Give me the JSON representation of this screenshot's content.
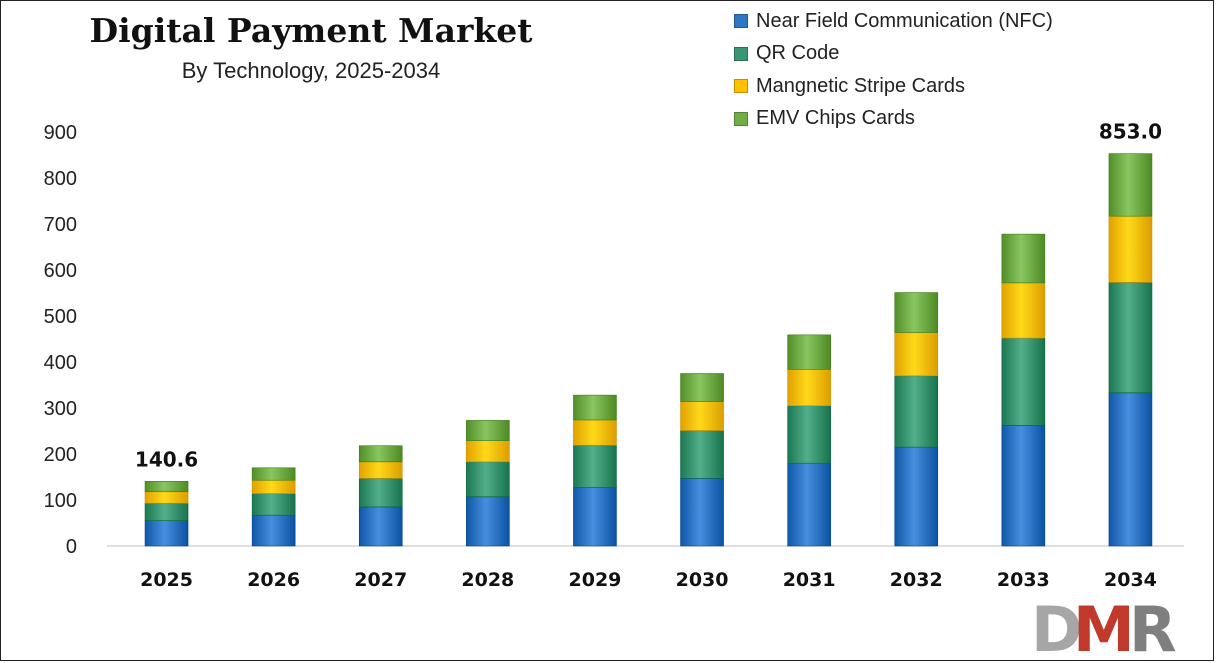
{
  "chart_data": {
    "type": "bar",
    "stacked": true,
    "title": "Digital Payment Market",
    "subtitle": "By Technology, 2025-2034",
    "categories": [
      "2025",
      "2026",
      "2027",
      "2028",
      "2029",
      "2030",
      "2031",
      "2032",
      "2033",
      "2034"
    ],
    "series": [
      {
        "name": "Near Field Communication (NFC)",
        "color": "#2e75c6",
        "values": [
          55,
          67,
          85,
          107,
          127,
          147,
          180,
          215,
          262,
          333
        ]
      },
      {
        "name": "QR Code",
        "color": "#3a9670",
        "values": [
          38,
          47,
          62,
          76,
          92,
          104,
          125,
          155,
          190,
          240
        ]
      },
      {
        "name": "Mangnetic Stripe Cards",
        "color": "#ffc000",
        "values": [
          25,
          29,
          36,
          46,
          55,
          63,
          79,
          94,
          120,
          144
        ]
      },
      {
        "name": "EMV Chips Cards",
        "color": "#70ad47",
        "values": [
          22.6,
          27,
          35,
          44,
          54,
          61,
          75,
          87,
          106,
          136
        ]
      }
    ],
    "totals_labels": [
      {
        "category": "2025",
        "text": "140.6"
      },
      {
        "category": "2034",
        "text": "853.0"
      }
    ],
    "ylim": [
      0,
      900
    ],
    "yticks": [
      0,
      100,
      200,
      300,
      400,
      500,
      600,
      700,
      800,
      900
    ],
    "xlabel": "",
    "ylabel": "",
    "grid": false,
    "legend_position": "top-right"
  },
  "logo": {
    "text": "DMR",
    "colors": {
      "d": "#a6a6a6",
      "m": "#c0392b",
      "r": "#7f7f7f"
    }
  }
}
